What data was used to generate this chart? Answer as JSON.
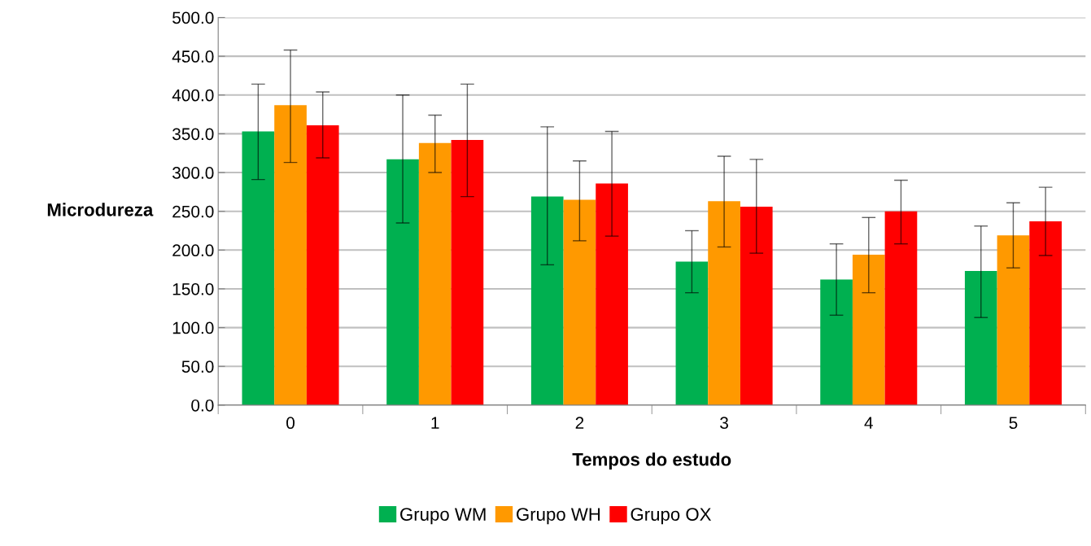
{
  "chart_data": {
    "type": "bar",
    "xlabel": "Tempos do estudo",
    "ylabel": "Microdureza",
    "categories": [
      "0",
      "1",
      "2",
      "3",
      "4",
      "5"
    ],
    "series": [
      {
        "name": "Grupo WM",
        "color": "#00b050",
        "values": [
          353,
          317,
          269,
          185,
          162,
          173
        ],
        "errors": [
          [
            291,
            414
          ],
          [
            235,
            400
          ],
          [
            181,
            359
          ],
          [
            145,
            225
          ],
          [
            116,
            208
          ],
          [
            113,
            231
          ]
        ]
      },
      {
        "name": "Grupo WH",
        "color": "#ff9900",
        "values": [
          387,
          338,
          265,
          263,
          194,
          219
        ],
        "errors": [
          [
            313,
            458
          ],
          [
            300,
            374
          ],
          [
            212,
            315
          ],
          [
            204,
            321
          ],
          [
            145,
            242
          ],
          [
            177,
            261
          ]
        ]
      },
      {
        "name": "Grupo OX",
        "color": "#ff0000",
        "values": [
          361,
          342,
          286,
          256,
          250,
          237
        ],
        "errors": [
          [
            319,
            404
          ],
          [
            269,
            414
          ],
          [
            218,
            353
          ],
          [
            196,
            317
          ],
          [
            208,
            290
          ],
          [
            193,
            281
          ]
        ]
      }
    ],
    "ylim": [
      0,
      500
    ],
    "yticks": [
      {
        "value": 0,
        "label": "0.0"
      },
      {
        "value": 50,
        "label": "50.0"
      },
      {
        "value": 100,
        "label": "100.0"
      },
      {
        "value": 150,
        "label": "150.0"
      },
      {
        "value": 200,
        "label": "200.0"
      },
      {
        "value": 250,
        "label": "250.0"
      },
      {
        "value": 300,
        "label": "300.0"
      },
      {
        "value": 350,
        "label": "350.0"
      },
      {
        "value": 400,
        "label": "400.0"
      },
      {
        "value": 450,
        "label": "450.0"
      },
      {
        "value": 500,
        "label": "500.0"
      }
    ],
    "grid": "y",
    "legend": "bottom"
  }
}
